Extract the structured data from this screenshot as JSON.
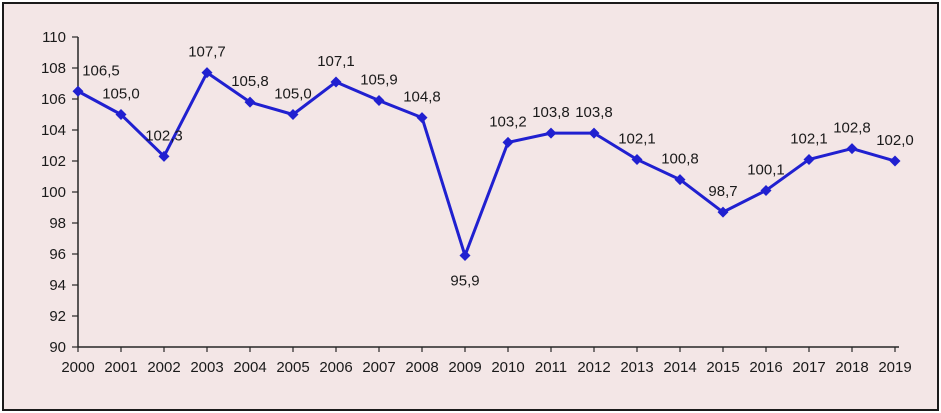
{
  "chart_data": {
    "type": "line",
    "title": "",
    "xlabel": "",
    "ylabel": "",
    "categories": [
      "2000",
      "2001",
      "2002",
      "2003",
      "2004",
      "2005",
      "2006",
      "2007",
      "2008",
      "2009",
      "2010",
      "2011",
      "2012",
      "2013",
      "2014",
      "2015",
      "2016",
      "2017",
      "2018",
      "2019"
    ],
    "series": [
      {
        "name": "",
        "values": [
          106.5,
          105.0,
          102.3,
          107.7,
          105.8,
          105.0,
          107.1,
          105.9,
          104.8,
          95.9,
          103.2,
          103.8,
          103.8,
          102.1,
          100.8,
          98.7,
          100.1,
          102.1,
          102.8,
          102.0
        ]
      }
    ],
    "data_labels": [
      "106,5",
      "105,0",
      "102,3",
      "107,7",
      "105,8",
      "105,0",
      "107,1",
      "105,9",
      "104,8",
      "95,9",
      "103,2",
      "103,8",
      "103,8",
      "102,1",
      "100,8",
      "98,7",
      "100,1",
      "102,1",
      "102,8",
      "102,0"
    ],
    "decimal_separator": ",",
    "ylim": [
      90,
      110
    ],
    "ytick_step": 2,
    "ytick_labels": [
      "110",
      "108",
      "106",
      "104",
      "102",
      "100",
      "98",
      "96",
      "94",
      "92",
      "90"
    ],
    "grid": false,
    "legend": "none",
    "marker": "diamond",
    "label_layout": {
      "0": {
        "dx": 23
      },
      "9": {
        "below": true
      }
    },
    "colors": {
      "line": "#2020d0",
      "marker": "#2020d0",
      "plot_background": "#f3e6e6",
      "frame_border": "#1a1a1a",
      "axis": "#262626",
      "text": "#1a1a1a"
    }
  }
}
